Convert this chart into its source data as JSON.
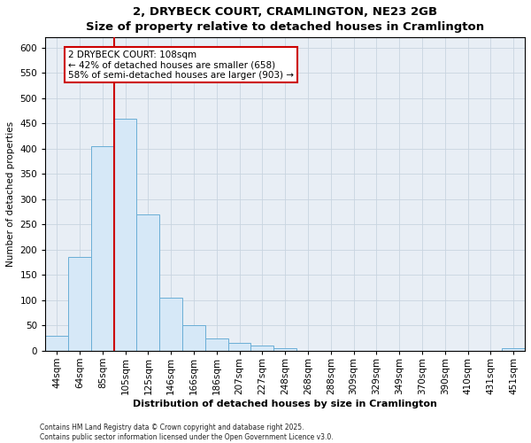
{
  "title": "2, DRYBECK COURT, CRAMLINGTON, NE23 2GB",
  "subtitle": "Size of property relative to detached houses in Cramlington",
  "xlabel": "Distribution of detached houses by size in Cramlington",
  "ylabel": "Number of detached properties",
  "bin_labels": [
    "44sqm",
    "64sqm",
    "85sqm",
    "105sqm",
    "125sqm",
    "146sqm",
    "166sqm",
    "186sqm",
    "207sqm",
    "227sqm",
    "248sqm",
    "268sqm",
    "288sqm",
    "309sqm",
    "329sqm",
    "349sqm",
    "370sqm",
    "390sqm",
    "410sqm",
    "431sqm",
    "451sqm"
  ],
  "bar_heights": [
    30,
    185,
    405,
    460,
    270,
    105,
    50,
    25,
    15,
    10,
    5,
    0,
    0,
    0,
    0,
    0,
    0,
    0,
    0,
    0,
    5
  ],
  "bar_color": "#d6e8f7",
  "bar_edgecolor": "#6aaed6",
  "grid_color": "#c8d4e0",
  "background_color": "#e8eef5",
  "vline_color": "#cc0000",
  "vline_x": 2.5,
  "annotation_text": "2 DRYBECK COURT: 108sqm\n← 42% of detached houses are smaller (658)\n58% of semi-detached houses are larger (903) →",
  "ylim_max": 620,
  "yticks": [
    0,
    50,
    100,
    150,
    200,
    250,
    300,
    350,
    400,
    450,
    500,
    550,
    600
  ],
  "footnote1": "Contains HM Land Registry data © Crown copyright and database right 2025.",
  "footnote2": "Contains public sector information licensed under the Open Government Licence v3.0."
}
